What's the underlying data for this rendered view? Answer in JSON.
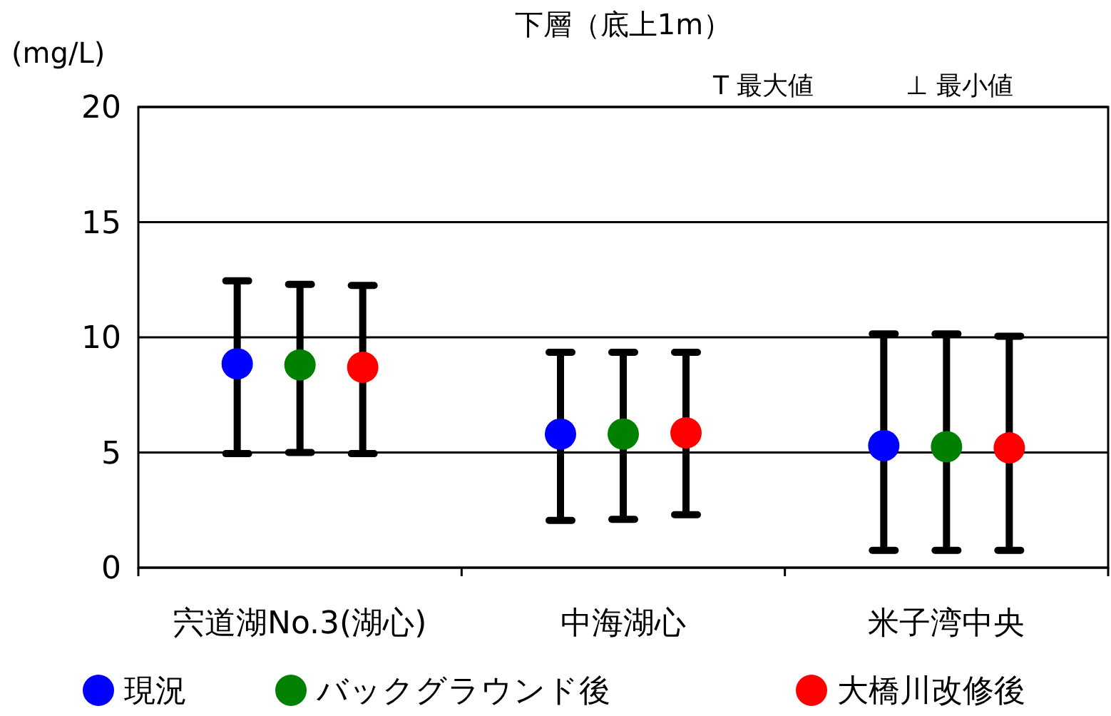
{
  "chart_data": {
    "type": "scatter",
    "title": "下層（底上1m）",
    "ylabel": "(mg/L)",
    "annotations": [
      "T 最大値",
      "⊥ 最小値"
    ],
    "categories": [
      "宍道湖No.3(湖心)",
      "中海湖心",
      "米子湾中央"
    ],
    "series": [
      {
        "name": "現況",
        "color": "#0000ff",
        "values": [
          8.85,
          5.8,
          5.3
        ],
        "errors": [
          [
            4.95,
            12.45
          ],
          [
            2.05,
            9.35
          ],
          [
            0.75,
            10.15
          ]
        ]
      },
      {
        "name": "バックグラウンド後",
        "color": "#008000",
        "values": [
          8.8,
          5.8,
          5.25
        ],
        "errors": [
          [
            5.0,
            12.3
          ],
          [
            2.1,
            9.35
          ],
          [
            0.75,
            10.15
          ]
        ]
      },
      {
        "name": "大橋川改修後",
        "color": "#ff0000",
        "values": [
          8.7,
          5.85,
          5.2
        ],
        "errors": [
          [
            4.95,
            12.25
          ],
          [
            2.3,
            9.35
          ],
          [
            0.75,
            10.05
          ]
        ]
      }
    ],
    "ylim": [
      0,
      20
    ],
    "yticks": [
      0,
      5,
      10,
      15,
      20
    ],
    "grid": "y",
    "legend": "bottom",
    "marker": "circle"
  }
}
